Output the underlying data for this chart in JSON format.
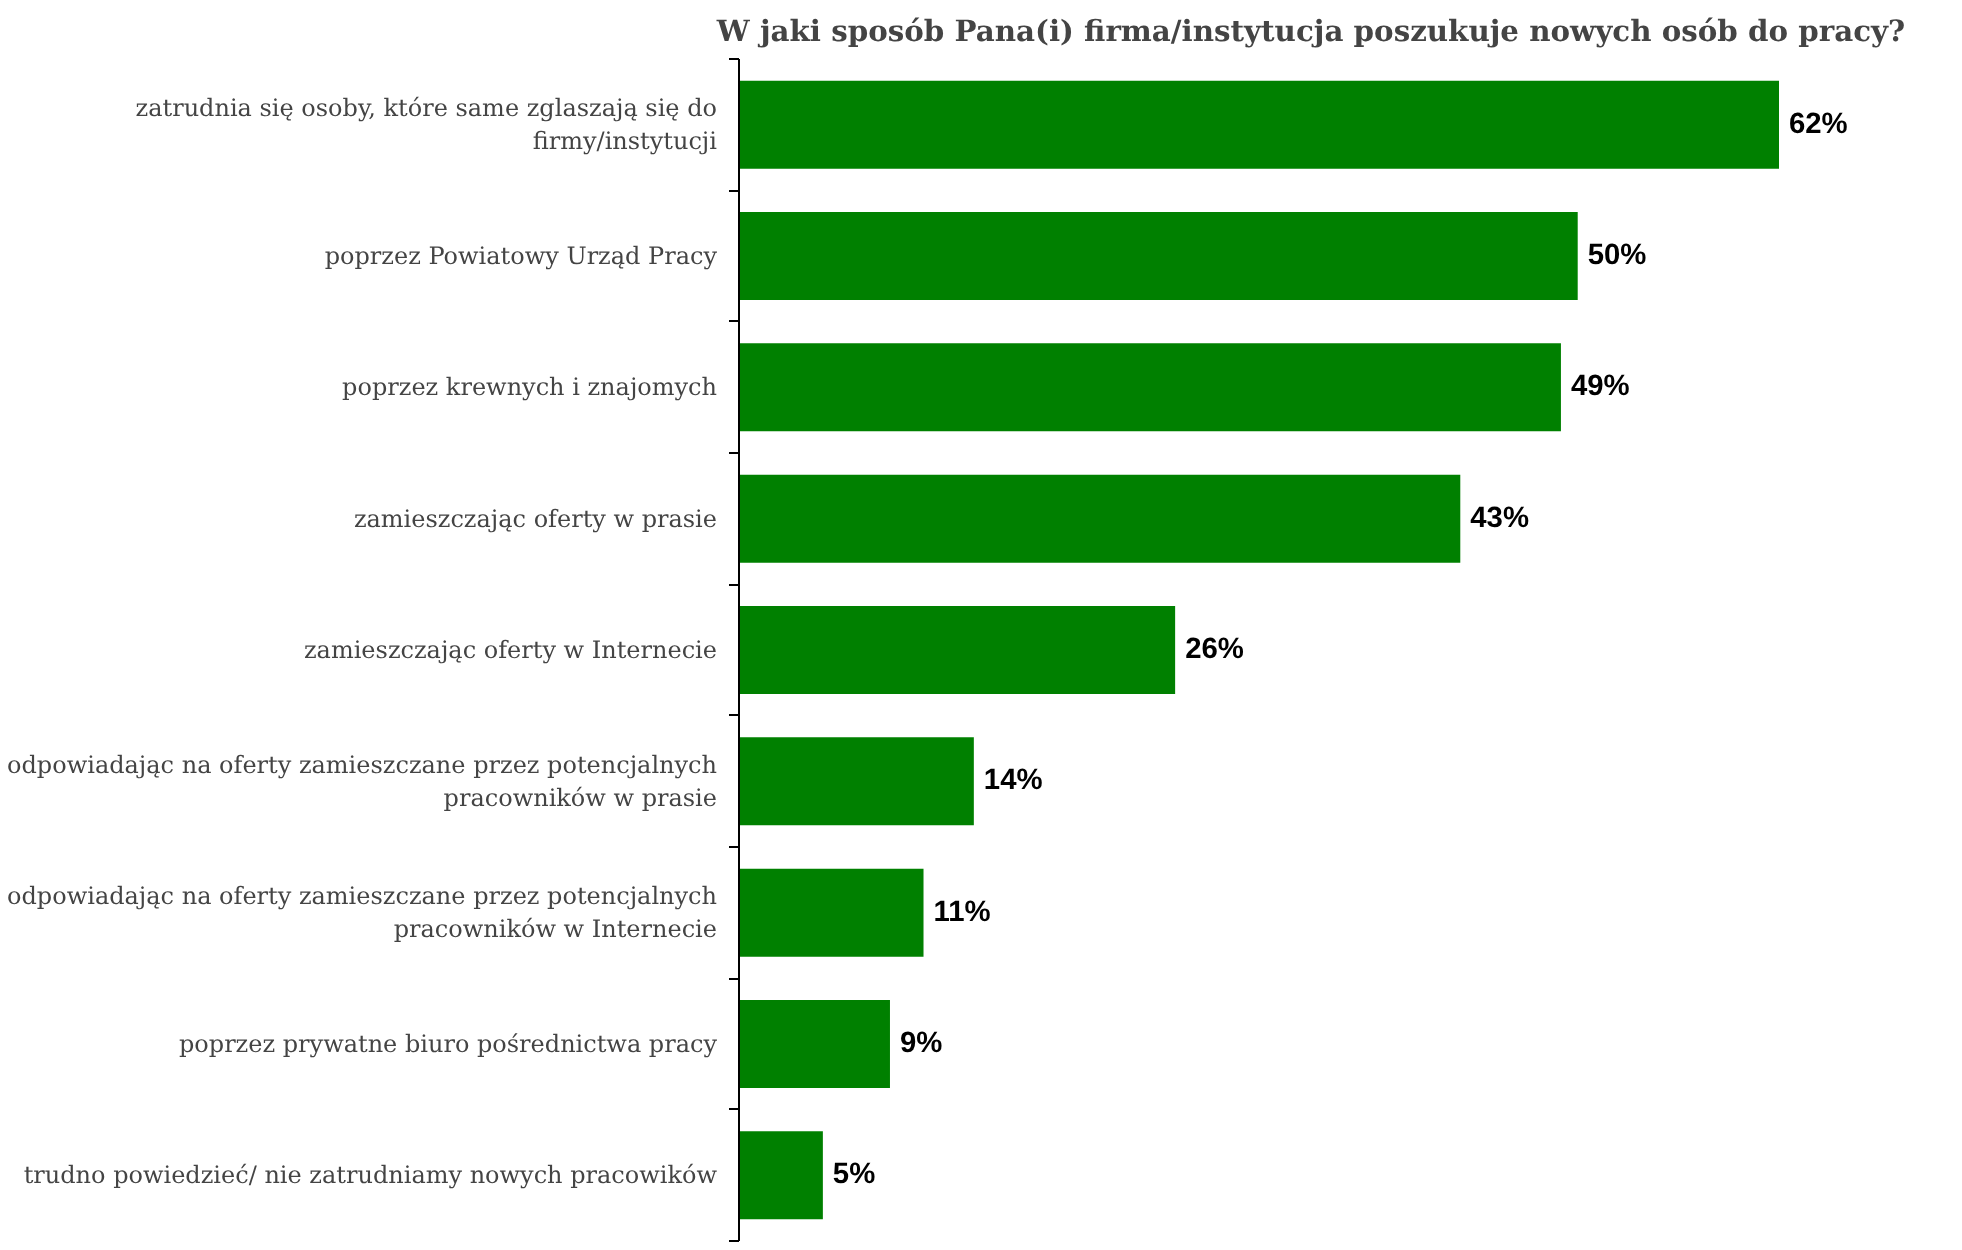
{
  "chart_data": {
    "type": "bar",
    "orientation": "horizontal",
    "title": "W jaki sposób Pana(i) firma/instytucja poszukuje nowych osób do pracy?",
    "categories": [
      "zatrudnia się osoby, które same zglaszają się do firmy/instytucji",
      "poprzez Powiatowy Urząd Pracy",
      "poprzez krewnych i znajomych",
      "zamieszczając oferty w prasie",
      "zamieszczając oferty w Internecie",
      "odpowiadając na oferty zamieszczane przez potencjalnych pracowników w prasie",
      "odpowiadając na oferty zamieszczane przez potencjalnych pracowników w Internecie",
      "poprzez prywatne biuro pośrednictwa pracy",
      "trudno powiedzieć/ nie zatrudniamy nowych pracowików"
    ],
    "values": [
      62,
      50,
      49,
      43,
      26,
      14,
      11,
      9,
      5
    ],
    "value_labels": [
      "62%",
      "50%",
      "49%",
      "43%",
      "26%",
      "14%",
      "11%",
      "9%",
      "5%"
    ],
    "color": "#008000",
    "grid": false
  }
}
